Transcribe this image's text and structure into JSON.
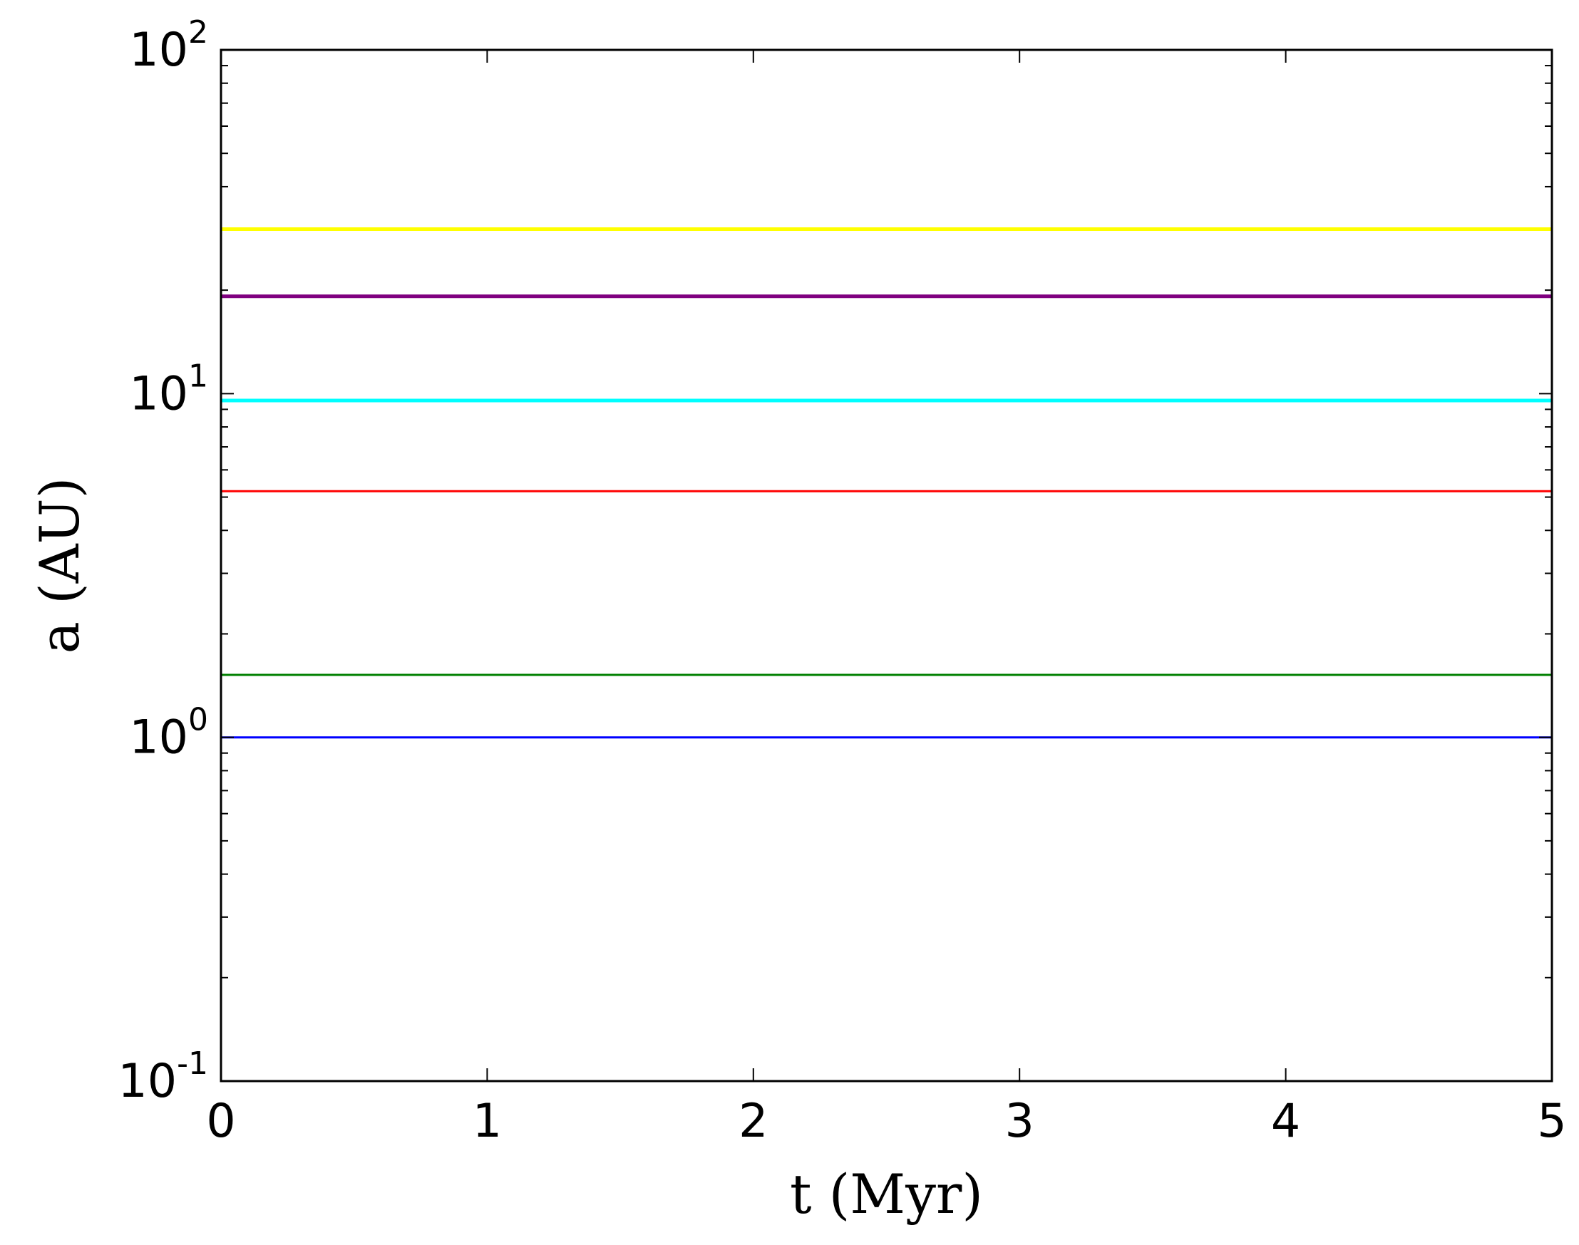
{
  "chart_data": {
    "type": "line",
    "title": "",
    "xlabel": "t (Myr)",
    "ylabel": "a (AU)",
    "xlim": [
      0,
      5
    ],
    "ylim": [
      0.1,
      100
    ],
    "yscale": "log",
    "grid": false,
    "legend": "none",
    "x_ticks": [
      {
        "value": 0,
        "label": "0"
      },
      {
        "value": 1,
        "label": "1"
      },
      {
        "value": 2,
        "label": "2"
      },
      {
        "value": 3,
        "label": "3"
      },
      {
        "value": 4,
        "label": "4"
      },
      {
        "value": 5,
        "label": "5"
      }
    ],
    "y_ticks": [
      {
        "value": 0.1,
        "base": "10",
        "exp": "-1"
      },
      {
        "value": 1,
        "base": "10",
        "exp": "0"
      },
      {
        "value": 10,
        "base": "10",
        "exp": "1"
      },
      {
        "value": 100,
        "base": "10",
        "exp": "2"
      }
    ],
    "series": [
      {
        "color": "#ffff00",
        "x": [
          0,
          5
        ],
        "y": [
          30.1,
          30.1
        ]
      },
      {
        "color": "#800080",
        "x": [
          0,
          5
        ],
        "y": [
          19.2,
          19.2
        ]
      },
      {
        "color": "#00ffff",
        "x": [
          0,
          5
        ],
        "y": [
          9.55,
          9.55
        ]
      },
      {
        "color": "#ff0000",
        "x": [
          0,
          5
        ],
        "y": [
          5.2,
          5.2
        ]
      },
      {
        "color": "#008000",
        "x": [
          0,
          5
        ],
        "y": [
          1.52,
          1.52
        ]
      },
      {
        "color": "#0000ff",
        "x": [
          0,
          5
        ],
        "y": [
          1.0,
          1.0
        ]
      }
    ]
  }
}
